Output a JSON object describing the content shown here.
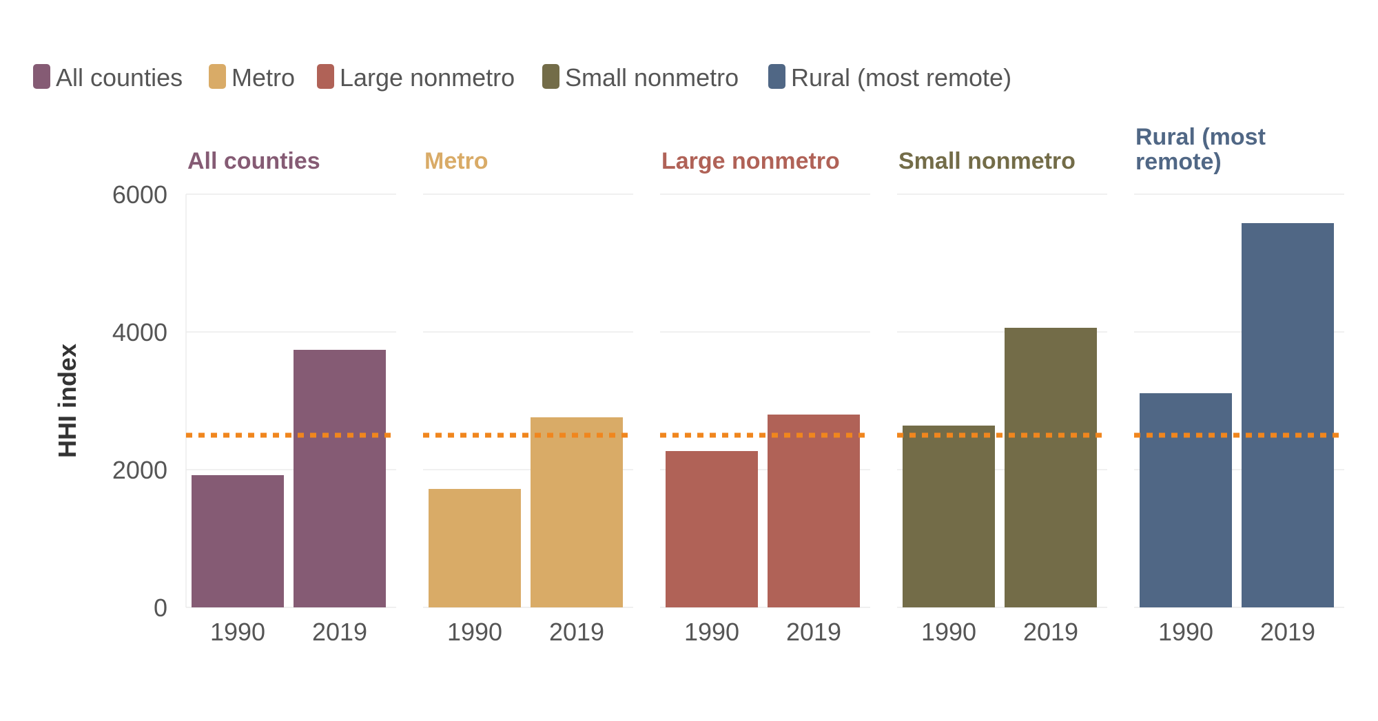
{
  "chart_data": {
    "type": "bar",
    "ylabel": "HHI index",
    "ylim": [
      0,
      6000
    ],
    "yticks": [
      0,
      2000,
      4000,
      6000
    ],
    "categories": [
      "1990",
      "2019"
    ],
    "legend": {
      "position": "top-left",
      "items": [
        {
          "label": "All counties",
          "color": "#855b74"
        },
        {
          "label": "Metro",
          "color": "#d9ab67"
        },
        {
          "label": "Large nonmetro",
          "color": "#b06257"
        },
        {
          "label": "Small nonmetro",
          "color": "#736c48"
        },
        {
          "label": "Rural (most remote)",
          "color": "#506785"
        }
      ]
    },
    "panels": [
      {
        "title": [
          "All counties"
        ],
        "color": "#855b74",
        "values": [
          1920,
          3740
        ]
      },
      {
        "title": [
          "Metro"
        ],
        "color": "#d9ab67",
        "values": [
          1720,
          2760
        ]
      },
      {
        "title": [
          "Large nonmetro"
        ],
        "color": "#b06257",
        "values": [
          2270,
          2800
        ]
      },
      {
        "title": [
          "Small nonmetro"
        ],
        "color": "#736c48",
        "values": [
          2640,
          4060
        ]
      },
      {
        "title": [
          "Rural (most",
          "remote)"
        ],
        "color": "#506785",
        "values": [
          3110,
          5580
        ]
      }
    ],
    "reference_line": {
      "value": 2500,
      "color": "#f0861e",
      "style": "dotted"
    },
    "grid": true
  }
}
